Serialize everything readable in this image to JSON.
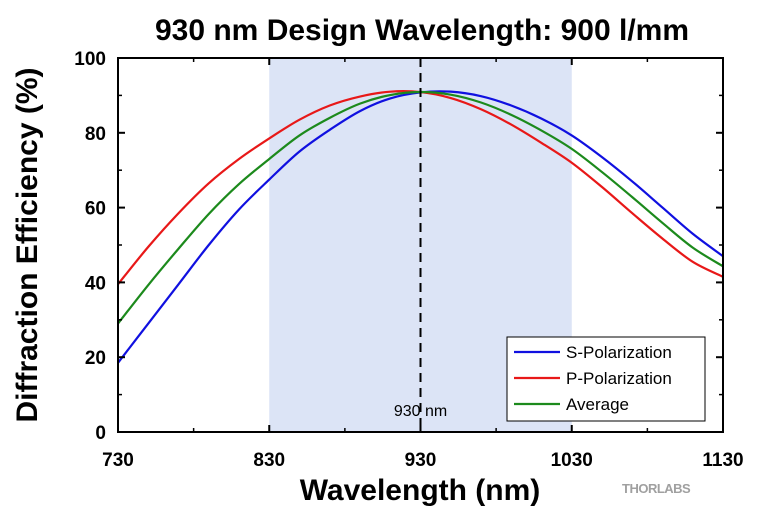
{
  "chart_data": {
    "type": "line",
    "title": "930 nm Design Wavelength: 900 l/mm",
    "xlabel": "Wavelength (nm)",
    "ylabel": "Diffraction Efficiency (%)",
    "xlim": [
      730,
      1130
    ],
    "ylim": [
      0,
      100
    ],
    "xticks": [
      730,
      830,
      930,
      1030,
      1130
    ],
    "yticks": [
      0,
      20,
      40,
      60,
      80,
      100
    ],
    "grid": false,
    "shaded_region": {
      "x": [
        830,
        1030
      ],
      "color": "#dce4f6"
    },
    "reference_line": {
      "x": 930,
      "label": "930 nm",
      "style": "dashed"
    },
    "legend_position": "bottom-right",
    "x": [
      730,
      750,
      770,
      790,
      810,
      830,
      850,
      870,
      890,
      910,
      930,
      950,
      970,
      990,
      1010,
      1030,
      1050,
      1070,
      1090,
      1110,
      1130
    ],
    "series": [
      {
        "name": "S-Polarization",
        "color": "#1010e0",
        "values": [
          18.5,
          29,
          39.5,
          50,
          59.5,
          67.5,
          75,
          80.8,
          85.8,
          89.2,
          90.8,
          91,
          89.8,
          87.3,
          83.8,
          79.3,
          73.5,
          67,
          60,
          53,
          47
        ]
      },
      {
        "name": "P-Polarization",
        "color": "#e81818",
        "values": [
          39.5,
          49.5,
          58.5,
          66.5,
          73,
          78.5,
          83.5,
          87.3,
          89.7,
          91,
          90.9,
          89.3,
          86.3,
          82.2,
          77.3,
          72,
          65.5,
          58.5,
          51.7,
          45.5,
          41.5
        ]
      },
      {
        "name": "Average",
        "color": "#1c8a1c",
        "values": [
          29,
          39.3,
          49,
          58.3,
          66.3,
          73,
          79.3,
          84,
          87.8,
          90.1,
          90.9,
          90.2,
          88.1,
          84.8,
          80.6,
          75.7,
          69.5,
          62.8,
          55.9,
          49.3,
          44.3
        ]
      }
    ]
  },
  "watermark": "THORLABS"
}
